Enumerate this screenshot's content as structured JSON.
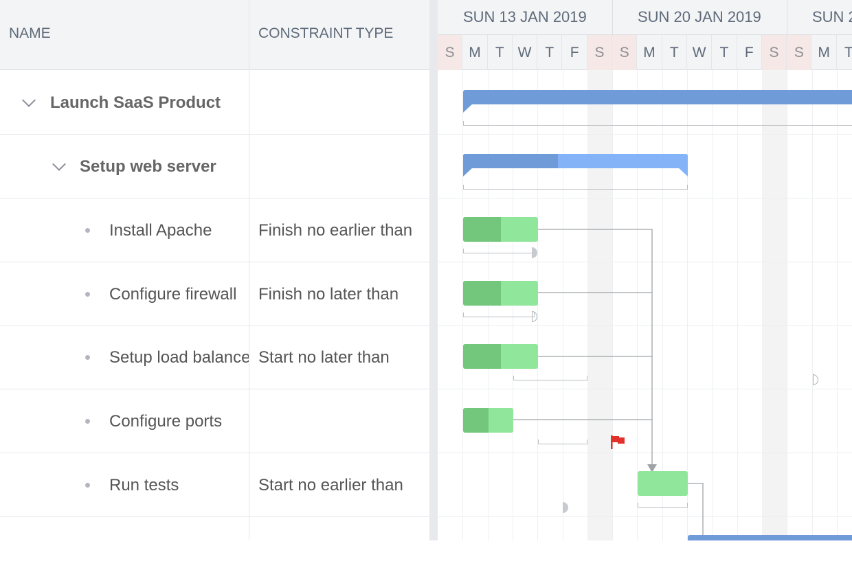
{
  "grid": {
    "headers": {
      "name": "NAME",
      "constraint_type": "CONSTRAINT TYPE"
    },
    "rows": [
      {
        "name": "Launch SaaS Product",
        "constraint": ""
      },
      {
        "name": "Setup web server",
        "constraint": ""
      },
      {
        "name": "Install Apache",
        "constraint": "Finish no earlier than"
      },
      {
        "name": "Configure firewall",
        "constraint": "Finish no later than"
      },
      {
        "name": "Setup load balancer",
        "constraint": "Start no later than"
      },
      {
        "name": "Configure ports",
        "constraint": ""
      },
      {
        "name": "Run tests",
        "constraint": "Start no earlier than"
      }
    ]
  },
  "timeline": {
    "weeks": [
      "SUN 13 JAN 2019",
      "SUN 20 JAN 2019",
      "SUN 2"
    ],
    "days": [
      "S",
      "M",
      "T",
      "W",
      "T",
      "F",
      "S",
      "S",
      "M",
      "T",
      "W",
      "T",
      "F",
      "S",
      "S",
      "M",
      "T"
    ]
  },
  "colors": {
    "parent_bar": "#6f9bd8",
    "parent_bar_light": "#84b4f7",
    "task_done": "#73c77c",
    "task_todo": "#90e69a",
    "weekend_header": "#f5e8e6",
    "milestone_flag": "#e0322b"
  },
  "icons": {
    "expand": "chevron-down-icon",
    "leaf": "bullet-icon",
    "deadline": "flag-icon"
  }
}
